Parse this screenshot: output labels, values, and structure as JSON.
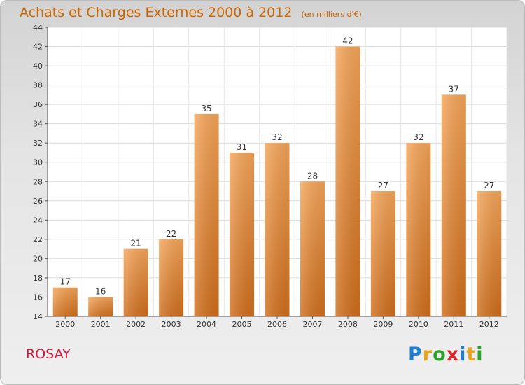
{
  "chart_data": {
    "type": "bar",
    "title": "Achats et Charges Externes 2000 à 2012",
    "subtitle": "(en milliers d'€)",
    "categories": [
      "2000",
      "2001",
      "2002",
      "2003",
      "2004",
      "2005",
      "2006",
      "2007",
      "2008",
      "2009",
      "2010",
      "2011",
      "2012"
    ],
    "values": [
      17,
      16,
      21,
      22,
      35,
      31,
      32,
      28,
      42,
      27,
      32,
      37,
      27
    ],
    "ylim": [
      14,
      44
    ],
    "yticks": [
      14,
      16,
      18,
      20,
      22,
      24,
      26,
      28,
      30,
      32,
      34,
      36,
      38,
      40,
      42,
      44
    ],
    "grid": true,
    "bar_color": "#f0903a",
    "label": "ROSAY"
  },
  "logo": {
    "letters": [
      "P",
      "r",
      "o",
      "x",
      "i",
      "t",
      "i"
    ],
    "colors": [
      "#1e7fd0",
      "#e8a317",
      "#2aa52a",
      "#d9262a",
      "#1e7fd0",
      "#e8a317",
      "#2aa52a"
    ]
  },
  "colors": {
    "title": "#cc6600",
    "label": "#d2193c"
  }
}
